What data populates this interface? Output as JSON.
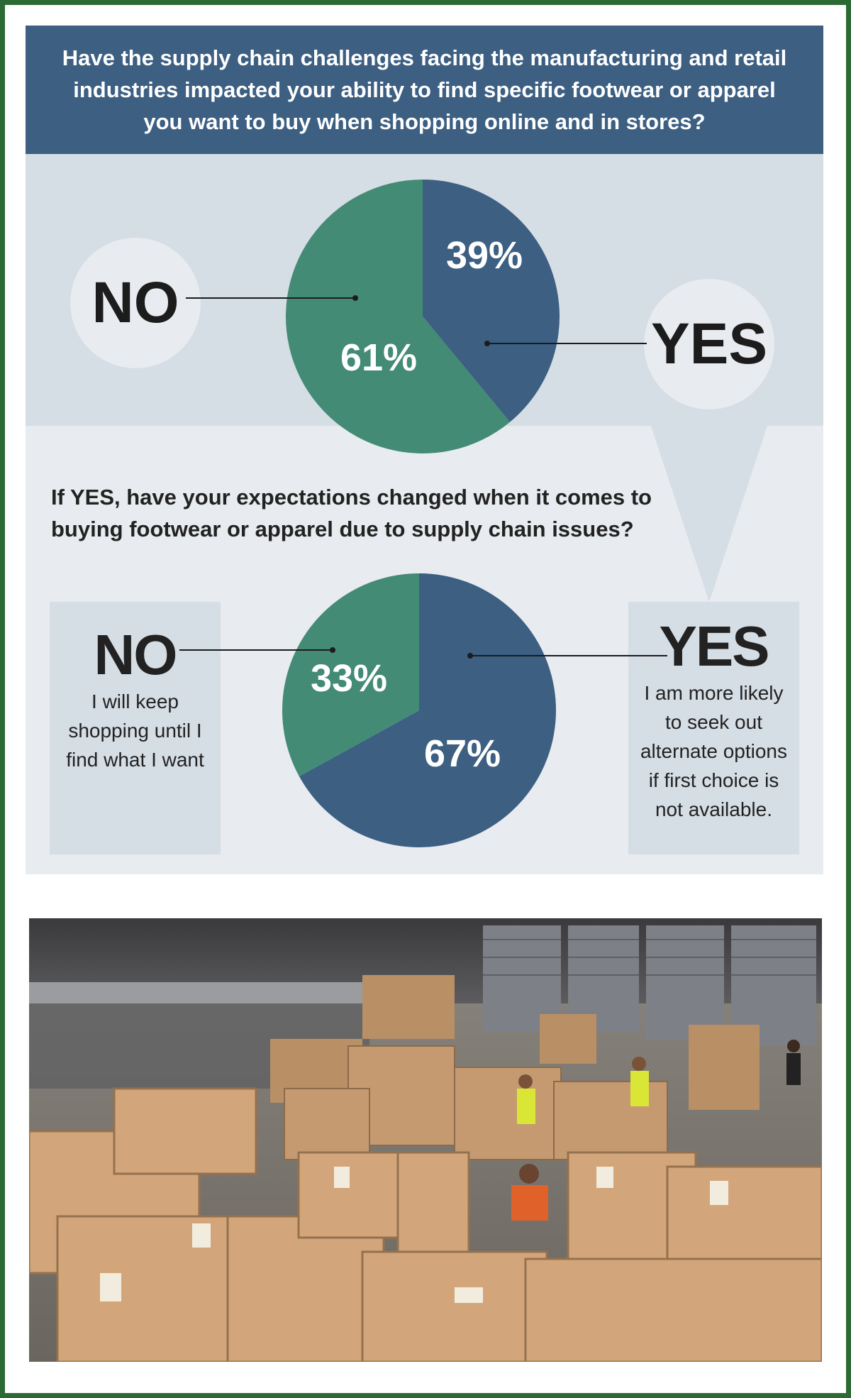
{
  "colors": {
    "header_bg": "#3c5f82",
    "blue": "#3c5f82",
    "green": "#438b74",
    "border": "#2c6a33",
    "band": "#d5dde5",
    "panel": "#e8ebef"
  },
  "header": {
    "question": "Have the supply chain challenges facing the manufacturing and retail industries impacted your ability to find specific footwear or apparel you want to buy when shopping online and in stores?"
  },
  "followup": {
    "question": "If YES, have your expectations changed when it comes to buying footwear or apparel due to supply chain issues?"
  },
  "chart_data": [
    {
      "type": "pie",
      "slices": [
        {
          "label": "YES",
          "value": 39,
          "value_text": "39%",
          "color": "#3c5f82"
        },
        {
          "label": "NO",
          "value": 61,
          "value_text": "61%",
          "color": "#438b74"
        }
      ]
    },
    {
      "type": "pie",
      "slices": [
        {
          "label": "YES",
          "value": 67,
          "value_text": "67%",
          "color": "#3c5f82",
          "description": "I am more likely to seek out alternate options if first choice is not available."
        },
        {
          "label": "NO",
          "value": 33,
          "value_text": "33%",
          "color": "#438b74",
          "description": "I will keep shopping until I find what I want"
        }
      ]
    }
  ]
}
